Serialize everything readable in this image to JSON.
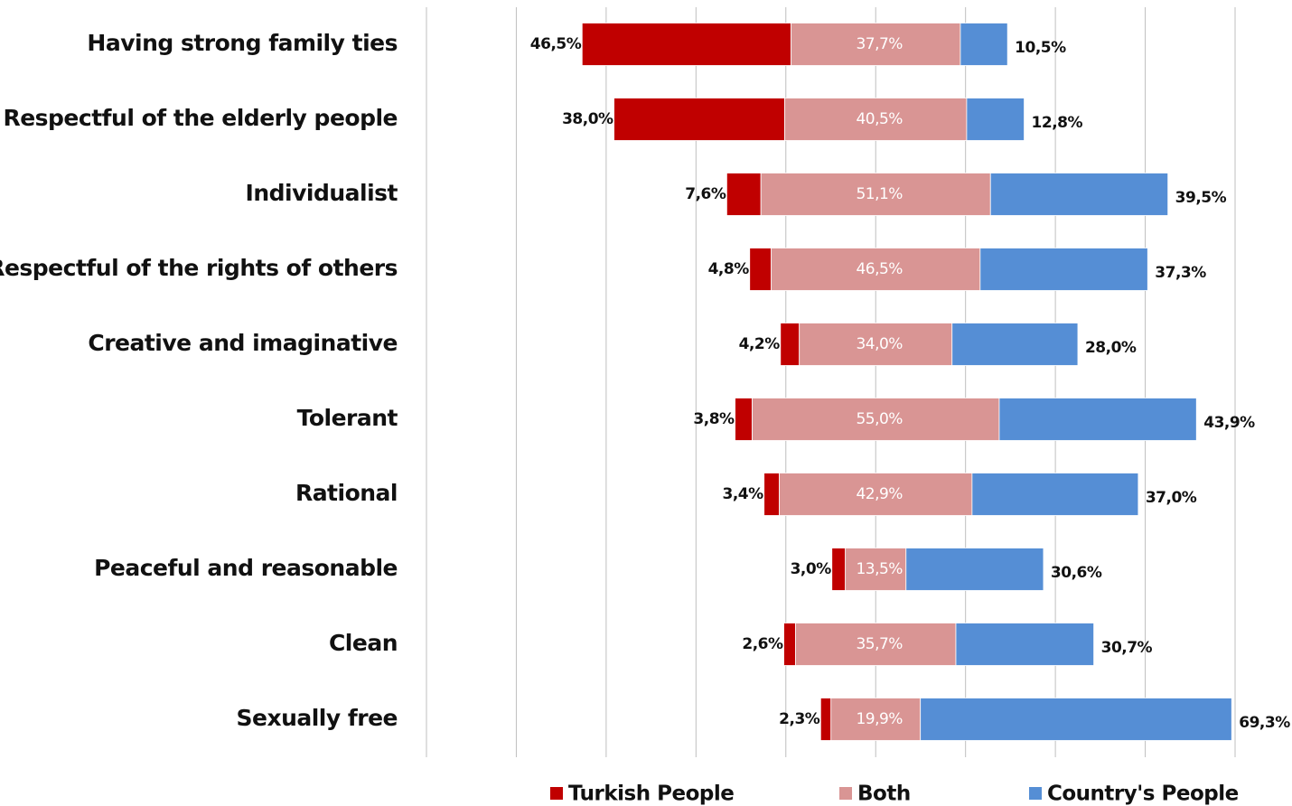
{
  "chart_data": {
    "type": "diverging_bar",
    "categories": [
      "Having strong family ties",
      "Respectful of the elderly  people",
      "Individualist",
      "Respectful of the rights of others",
      "Creative and imaginative",
      "Tolerant",
      "Rational",
      "Peaceful and reasonable",
      "Clean",
      "Sexually free"
    ],
    "series": [
      {
        "name": "Turkish People",
        "color": "#c00000",
        "values": [
          46.5,
          38.0,
          7.6,
          4.8,
          4.2,
          3.8,
          3.4,
          3.0,
          2.6,
          2.3
        ],
        "value_labels": [
          "46,5%",
          "38,0%",
          "7,6%",
          "4,8%",
          "4,2%",
          "3,8%",
          "3,4%",
          "3,0%",
          "2,6%",
          "2,3%"
        ]
      },
      {
        "name": "Both",
        "color": "#d99594",
        "values": [
          37.7,
          40.5,
          51.1,
          46.5,
          34.0,
          55.0,
          42.9,
          13.5,
          35.7,
          19.9
        ],
        "value_labels": [
          "37,7%",
          "40,5%",
          "51,1%",
          "46,5%",
          "34,0%",
          "55,0%",
          "42,9%",
          "13,5%",
          "35,7%",
          "19,9%"
        ]
      },
      {
        "name": "Country's People",
        "color": "#558ed5",
        "values": [
          10.5,
          12.8,
          39.5,
          37.3,
          28.0,
          43.9,
          37.0,
          30.6,
          30.7,
          69.3
        ],
        "value_labels": [
          "10,5%",
          "12,8%",
          "39,5%",
          "37,3%",
          "28,0%",
          "43,9%",
          "37,0%",
          "30,6%",
          "30,7%",
          "69,3%"
        ]
      }
    ],
    "xlim": [
      -100,
      80
    ],
    "xticks": [
      -100,
      -80,
      -60,
      -40,
      -20,
      0,
      20,
      40,
      60,
      80
    ],
    "grid": true,
    "legend": "bottom"
  }
}
